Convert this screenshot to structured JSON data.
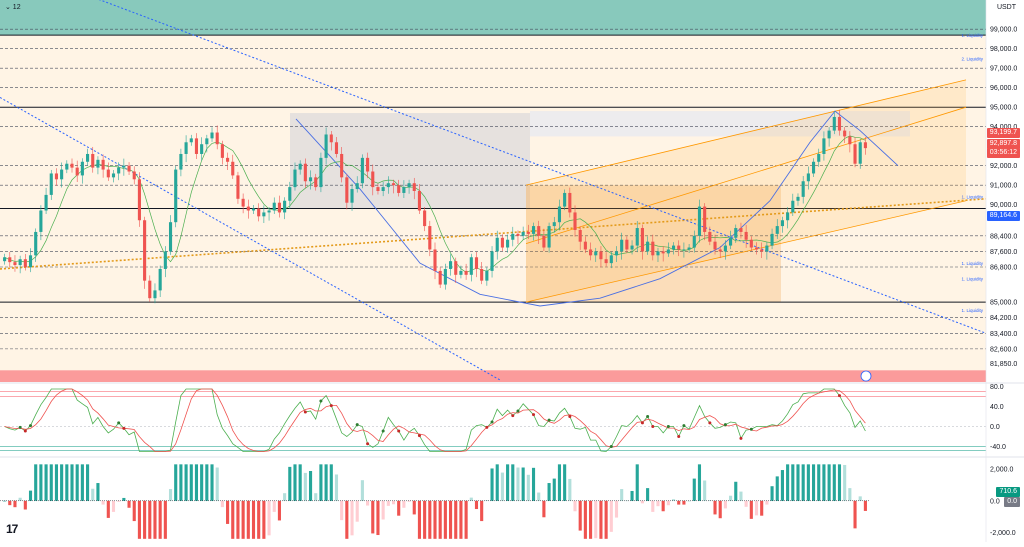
{
  "header": {
    "interval_label": "⌄ 12",
    "currency": "USDT",
    "logo": "17"
  },
  "colors": {
    "bull": "#26a69a",
    "bear": "#ef5350",
    "band_top": "#26a69a",
    "band_bottom": "#f7525f",
    "fib_fill": "#fff0dc",
    "channel": "#ff9800",
    "trend": "#2962ff",
    "level": "#131722"
  },
  "price_tags": [
    {
      "value": "93,199.7",
      "color": "#ef5350"
    },
    {
      "value": "92,897.8",
      "color": "#ef5350"
    },
    {
      "value": "03:56:12",
      "color": "#ef5350"
    },
    {
      "value": "89,164.6",
      "color": "#2962ff"
    }
  ],
  "osc_tags": [
    {
      "value": "710.6",
      "color": "#089981"
    },
    {
      "value": "0.0",
      "color": "#787b86"
    }
  ],
  "liquidity_labels": [
    {
      "text": "1. Liquidity",
      "price": 98500
    },
    {
      "text": "2. Liquidity",
      "price": 97300
    },
    {
      "text": "1. Liquidity",
      "price": 90200
    },
    {
      "text": "1. Liquidity",
      "price": 86800
    },
    {
      "text": "1. Liquidity",
      "price": 86000
    },
    {
      "text": "1. Liquidity",
      "price": 84400
    }
  ],
  "chart_data": {
    "type": "candlestick",
    "symbol_quote": "USDT",
    "price_ylim": [
      80900,
      100500
    ],
    "price_ticks": [
      "99,000.0",
      "98,000.0",
      "97,000.0",
      "96,000.0",
      "95,000.0",
      "94,000.0",
      "92,000.0",
      "91,000.0",
      "90,000.0",
      "88,400.0",
      "87,600.0",
      "86,800.0",
      "85,000.0",
      "84,200.0",
      "83,400.0",
      "82,600.0",
      "81,850.0"
    ],
    "horizontal_levels": [
      98700,
      95000,
      89800,
      85000
    ],
    "last_price": 92897.8,
    "close_series": [
      87300,
      87050,
      86900,
      87200,
      86800,
      87400,
      88600,
      89700,
      90500,
      91600,
      91300,
      91800,
      92100,
      91900,
      91500,
      92200,
      92600,
      91900,
      92300,
      91800,
      91400,
      91600,
      91900,
      92000,
      91700,
      91300,
      89200,
      86100,
      85200,
      85600,
      86700,
      87600,
      89100,
      91800,
      92600,
      93200,
      93400,
      92600,
      93100,
      93400,
      93700,
      93100,
      92400,
      92200,
      91500,
      90300,
      89900,
      89700,
      89800,
      89400,
      89600,
      89700,
      90100,
      89600,
      90200,
      90900,
      91800,
      92100,
      91200,
      91400,
      90900,
      92400,
      93600,
      93200,
      92600,
      91400,
      90100,
      90800,
      91100,
      92400,
      91700,
      90900,
      90700,
      90900,
      91100,
      91000,
      90600,
      90900,
      91100,
      90700,
      89700,
      88900,
      87700,
      86600,
      85900,
      86700,
      87100,
      86400,
      86600,
      86400,
      87300,
      86700,
      86100,
      86600,
      87600,
      88300,
      87800,
      88200,
      88500,
      88400,
      88600,
      88500,
      88900,
      88400,
      87800,
      88900,
      89100,
      89900,
      90600,
      89600,
      88700,
      88100,
      87700,
      87400,
      87600,
      87200,
      87000,
      87400,
      87600,
      88200,
      87700,
      87900,
      88800,
      87600,
      88100,
      87400,
      87600,
      87500,
      87700,
      87900,
      87700,
      87700,
      87800,
      88400,
      89900,
      88600,
      88100,
      87700,
      87600,
      87900,
      88300,
      88800,
      88600,
      88200,
      87800,
      87700,
      87600,
      87900,
      88500,
      88900,
      89200,
      89600,
      90200,
      90400,
      91200,
      91600,
      92200,
      92600,
      93400,
      93800,
      94500,
      93800,
      93500,
      93100,
      92100,
      93200,
      92900
    ],
    "rsi_ylim": [
      -55,
      85
    ],
    "rsi_ticks": [
      "80.0",
      "40.0",
      "0.0",
      "-40.0"
    ],
    "macd_ylim": [
      -2600,
      2700
    ],
    "macd_ticks": [
      "2,000.0",
      "0.0",
      "-2,000.0"
    ],
    "macd_last": 710.6
  }
}
